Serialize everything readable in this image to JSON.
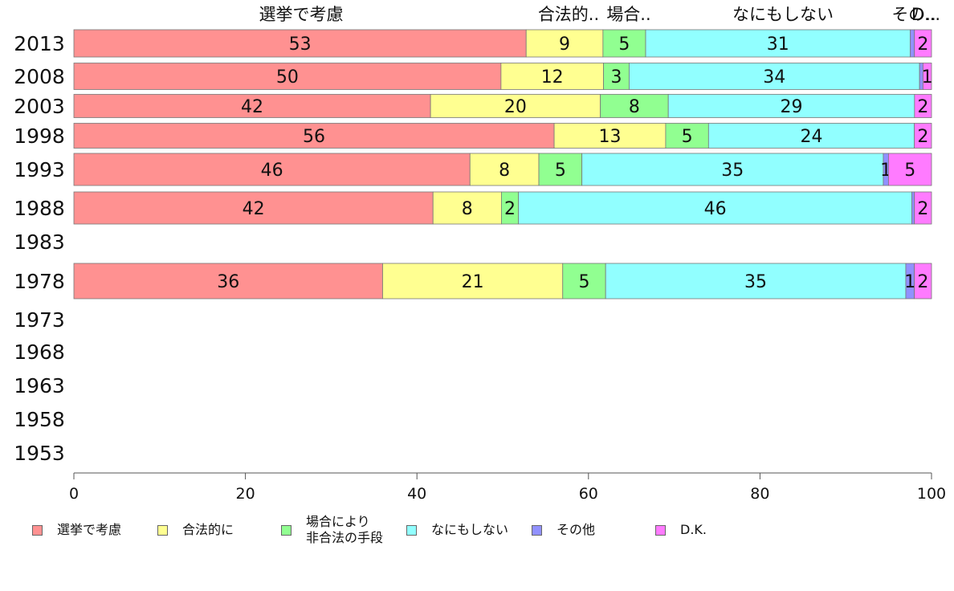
{
  "chart_data": {
    "type": "bar",
    "orientation": "horizontal",
    "stacked": true,
    "categories": [
      "2013",
      "2008",
      "2003",
      "1998",
      "1993",
      "1988",
      "1983",
      "1978",
      "1973",
      "1968",
      "1963",
      "1958",
      "1953"
    ],
    "top_labels": [
      "選挙で考慮",
      "合法的..",
      "場合..",
      "なにもしない",
      "その..",
      "D..."
    ],
    "series": [
      {
        "name": "選挙で考慮",
        "color": "#ff9191",
        "values": [
          53,
          50,
          42,
          56,
          46,
          42,
          null,
          36,
          null,
          null,
          null,
          null,
          null
        ]
      },
      {
        "name": "合法的に",
        "color": "#ffff91",
        "values": [
          9,
          12,
          20,
          13,
          8,
          8,
          null,
          21,
          null,
          null,
          null,
          null,
          null
        ]
      },
      {
        "name": "場合により\n非合法の手段",
        "color": "#91ff91",
        "values": [
          5,
          3,
          8,
          5,
          5,
          2,
          null,
          5,
          null,
          null,
          null,
          null,
          null
        ]
      },
      {
        "name": "なにもしない",
        "color": "#91ffff",
        "values": [
          31,
          34,
          29,
          24,
          35,
          46,
          null,
          35,
          null,
          null,
          null,
          null,
          null
        ]
      },
      {
        "name": "その他",
        "color": "#9191ff",
        "values": [
          0.5,
          0.4,
          0,
          0,
          0.6,
          0.3,
          null,
          1,
          null,
          null,
          null,
          null,
          null
        ]
      },
      {
        "name": "D.K.",
        "color": "#ff7bff",
        "values": [
          2,
          1,
          2,
          2,
          5,
          2,
          null,
          2,
          null,
          null,
          null,
          null,
          null
        ]
      }
    ],
    "labels": [
      [
        "53",
        "9",
        "5",
        "31",
        "",
        "2"
      ],
      [
        "50",
        "12",
        "3",
        "34",
        "",
        "1"
      ],
      [
        "42",
        "20",
        "8",
        "29",
        "",
        "2"
      ],
      [
        "56",
        "13",
        "5",
        "24",
        "",
        "2"
      ],
      [
        "46",
        "8",
        "5",
        "35",
        "1",
        "5"
      ],
      [
        "42",
        "8",
        "2",
        "46",
        "",
        "2"
      ],
      [],
      [
        "36",
        "21",
        "5",
        "35",
        "1",
        "2"
      ],
      [],
      [],
      [],
      [],
      []
    ],
    "xlim": [
      0,
      100
    ],
    "xticks": [
      "0",
      "20",
      "40",
      "60",
      "80",
      "100"
    ],
    "legend_position": "bottom"
  }
}
